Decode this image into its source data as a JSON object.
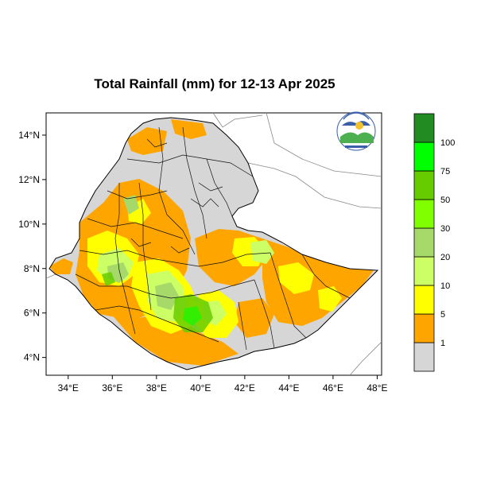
{
  "title": "Total Rainfall (mm) for 12-13 Apr 2025",
  "map": {
    "lon_range": [
      33,
      48.2
    ],
    "lat_range": [
      3.2,
      15.0
    ],
    "x_ticks": [
      {
        "value": 34,
        "label": "34°E"
      },
      {
        "value": 36,
        "label": "36°E"
      },
      {
        "value": 38,
        "label": "38°E"
      },
      {
        "value": 40,
        "label": "40°E"
      },
      {
        "value": 42,
        "label": "42°E"
      },
      {
        "value": 44,
        "label": "44°E"
      },
      {
        "value": 46,
        "label": "46°E"
      },
      {
        "value": 48,
        "label": "48°E"
      }
    ],
    "y_ticks": [
      {
        "value": 4,
        "label": "4°N"
      },
      {
        "value": 6,
        "label": "6°N"
      },
      {
        "value": 8,
        "label": "8°N"
      },
      {
        "value": 10,
        "label": "10°N"
      },
      {
        "value": 12,
        "label": "12°N"
      },
      {
        "value": 14,
        "label": "14°N"
      }
    ],
    "colors": {
      "below_1": "#d6d6d6",
      "1_5": "#ffa500",
      "5_10": "#ffff00",
      "10_20": "#ccff66",
      "20_30": "#a6d96a",
      "30_50": "#80ff00",
      "50_75": "#66cc00",
      "75_100": "#00ff00",
      "above_100": "#228b22"
    }
  },
  "colorbar": {
    "colors": [
      "#d6d6d6",
      "#ffa500",
      "#ffff00",
      "#ccff66",
      "#a6d96a",
      "#80ff00",
      "#66cc00",
      "#00ff00",
      "#228b22"
    ],
    "labels": [
      "1",
      "5",
      "10",
      "20",
      "30",
      "50",
      "75",
      "100"
    ]
  }
}
